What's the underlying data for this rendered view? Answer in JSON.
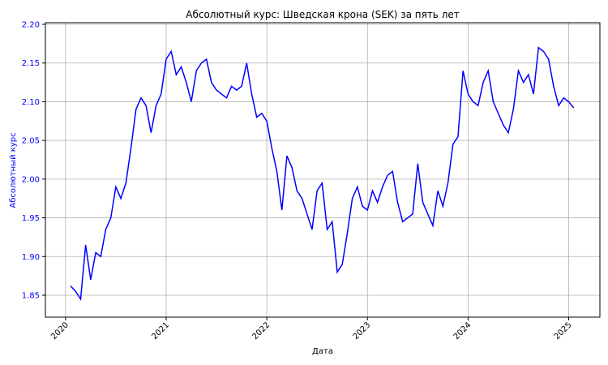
{
  "chart_data": {
    "type": "line",
    "title": "Абсолютный курс: Шведская крона (SEK) за пять лет",
    "xlabel": "Дата",
    "ylabel": "Абсолютный курс",
    "color": "#0000ff",
    "ylabel_color": "#0000ff",
    "grid": true,
    "x": [
      2020.05,
      2020.1,
      2020.15,
      2020.2,
      2020.25,
      2020.3,
      2020.35,
      2020.4,
      2020.45,
      2020.5,
      2020.55,
      2020.6,
      2020.65,
      2020.7,
      2020.75,
      2020.8,
      2020.85,
      2020.9,
      2020.95,
      2021.0,
      2021.05,
      2021.1,
      2021.15,
      2021.2,
      2021.25,
      2021.3,
      2021.35,
      2021.4,
      2021.45,
      2021.5,
      2021.55,
      2021.6,
      2021.65,
      2021.7,
      2021.75,
      2021.8,
      2021.85,
      2021.9,
      2021.95,
      2022.0,
      2022.05,
      2022.1,
      2022.15,
      2022.2,
      2022.25,
      2022.3,
      2022.35,
      2022.4,
      2022.45,
      2022.5,
      2022.55,
      2022.6,
      2022.65,
      2022.7,
      2022.75,
      2022.8,
      2022.85,
      2022.9,
      2022.95,
      2023.0,
      2023.05,
      2023.1,
      2023.15,
      2023.2,
      2023.25,
      2023.3,
      2023.35,
      2023.4,
      2023.45,
      2023.5,
      2023.55,
      2023.6,
      2023.65,
      2023.7,
      2023.75,
      2023.8,
      2023.85,
      2023.9,
      2023.95,
      2024.0,
      2024.05,
      2024.1,
      2024.15,
      2024.2,
      2024.25,
      2024.3,
      2024.35,
      2024.4,
      2024.45,
      2024.5,
      2024.55,
      2024.6,
      2024.65,
      2024.7,
      2024.75,
      2024.8,
      2024.85,
      2024.9,
      2024.95,
      2025.0,
      2025.05
    ],
    "values": [
      1.862,
      1.855,
      1.845,
      1.915,
      1.87,
      1.905,
      1.9,
      1.935,
      1.95,
      1.99,
      1.975,
      1.995,
      2.04,
      2.09,
      2.105,
      2.095,
      2.06,
      2.095,
      2.11,
      2.155,
      2.165,
      2.135,
      2.145,
      2.125,
      2.1,
      2.14,
      2.15,
      2.155,
      2.125,
      2.115,
      2.11,
      2.105,
      2.12,
      2.115,
      2.12,
      2.15,
      2.11,
      2.08,
      2.085,
      2.075,
      2.04,
      2.01,
      1.96,
      2.03,
      2.015,
      1.985,
      1.975,
      1.955,
      1.935,
      1.985,
      1.995,
      1.935,
      1.945,
      1.88,
      1.89,
      1.93,
      1.975,
      1.99,
      1.965,
      1.96,
      1.985,
      1.97,
      1.99,
      2.005,
      2.01,
      1.97,
      1.945,
      1.95,
      1.955,
      2.02,
      1.97,
      1.955,
      1.94,
      1.985,
      1.965,
      1.995,
      2.045,
      2.055,
      2.14,
      2.11,
      2.1,
      2.095,
      2.125,
      2.14,
      2.1,
      2.085,
      2.07,
      2.06,
      2.09,
      2.14,
      2.125,
      2.135,
      2.11,
      2.17,
      2.165,
      2.155,
      2.12,
      2.095,
      2.105,
      2.1,
      2.092
    ],
    "xlim": [
      2019.8,
      2025.31
    ],
    "xticks": [
      2020,
      2021,
      2022,
      2023,
      2024,
      2025
    ],
    "ylim": [
      1.8217,
      2.2021
    ],
    "yticks": [
      1.85,
      {
        "value": 1.9,
        "label": "1.90"
      },
      1.95,
      {
        "value": 2.0,
        "label": "2.00"
      },
      2.05,
      {
        "value": 2.1,
        "label": "2.10"
      },
      2.15,
      {
        "value": 2.2,
        "label": "2.20"
      }
    ]
  }
}
